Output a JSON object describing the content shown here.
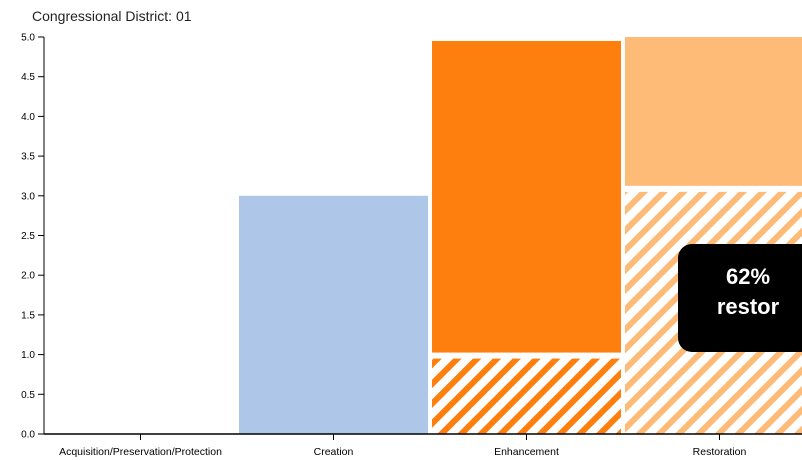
{
  "header": {
    "subtitle": "Congressional District: 01"
  },
  "tooltip": {
    "line1": "62%",
    "line2": "restor"
  },
  "chart_data": {
    "type": "bar",
    "categories": [
      "Acquisition/Preservation/Protection",
      "Creation",
      "Enhancement",
      "Restoration"
    ],
    "series": [
      {
        "values": [
          0,
          3.0,
          4.0,
          1.95
        ],
        "colors": [
          "#aec7e8",
          "#aec7e8",
          "#ff7f0e",
          "#fdbb77"
        ],
        "pattern": "solid"
      },
      {
        "values": [
          0,
          0,
          0.95,
          3.05
        ],
        "colors": [
          "#aec7e8",
          "#aec7e8",
          "#ff7f0e",
          "#fdbb77"
        ],
        "pattern": "hatched"
      }
    ],
    "ylim": [
      0,
      5
    ],
    "yticks": [
      "0.0",
      "0.5",
      "1.0",
      "1.5",
      "2.0",
      "2.5",
      "3.0",
      "3.5",
      "4.0",
      "4.5",
      "5.0"
    ],
    "xlabel": "",
    "ylabel": "",
    "grid": false,
    "stacking": "hatched-bottom, solid-top"
  }
}
